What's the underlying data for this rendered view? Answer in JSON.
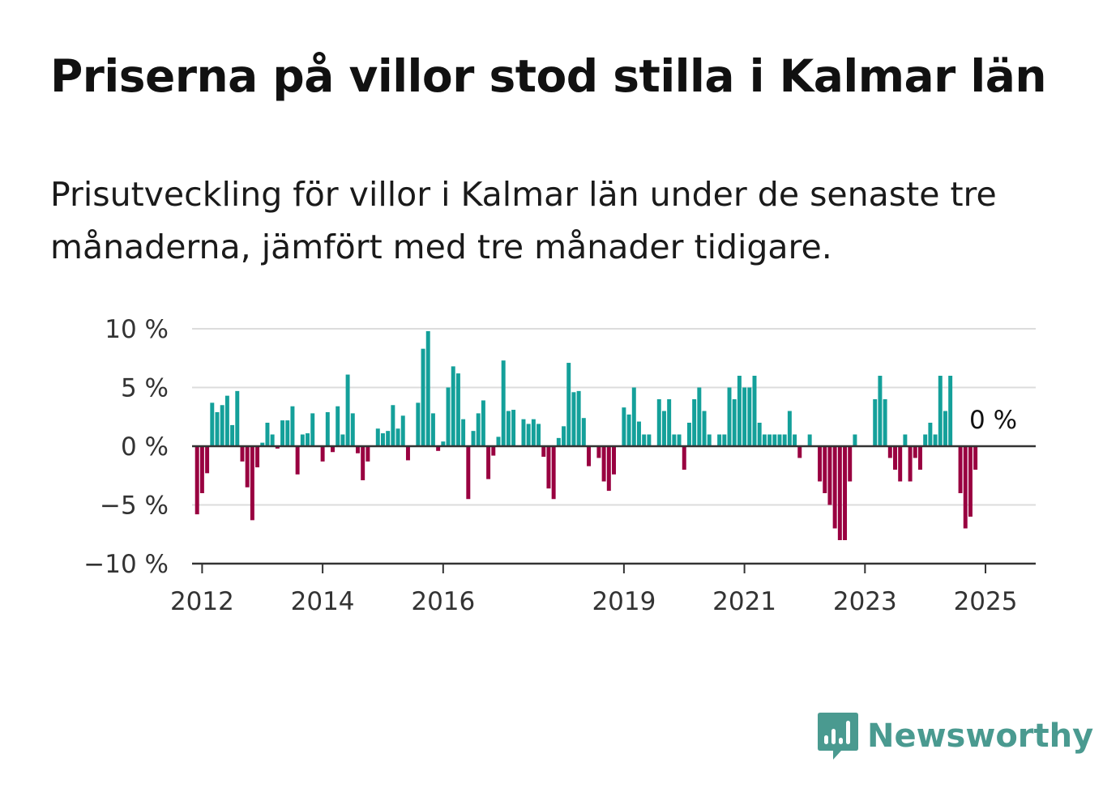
{
  "title": "Priserna på villor stod stilla i Kalmar län",
  "subtitle": "Prisutveckling för villor i Kalmar län under de senaste tre månaderna, jämfört med tre månader tidigare.",
  "brand": {
    "name": "Newsworthy",
    "icon": "newsworthy-logo-icon",
    "color": "#4a9a90"
  },
  "chart_data": {
    "type": "bar",
    "title": "",
    "xlabel": "",
    "ylabel": "",
    "ylim": [
      -10,
      10
    ],
    "yticks": [
      10,
      5,
      0,
      -5,
      -10
    ],
    "ytick_labels": [
      "10 %",
      "5 %",
      "0 %",
      "−5 %",
      "−10 %"
    ],
    "xticks": [
      "2012",
      "2014",
      "2016",
      "2019",
      "2021",
      "2023",
      "2025"
    ],
    "grid": true,
    "colors": {
      "positive": "#14a09a",
      "negative": "#990040"
    },
    "end_label": "0 %",
    "start": "2011-12",
    "end": "2025-03",
    "values": [
      -5.8,
      -4,
      -2.3,
      3.7,
      2.9,
      3.5,
      4.3,
      1.8,
      4.7,
      -1.3,
      -3.5,
      -6.3,
      -1.8,
      0.3,
      2.0,
      1.0,
      -0.2,
      2.2,
      2.2,
      3.4,
      -2.4,
      1.0,
      1.1,
      2.8,
      0,
      -1.3,
      2.9,
      -0.5,
      3.4,
      1.0,
      6.1,
      2.8,
      -0.6,
      -2.9,
      -1.3,
      0,
      1.5,
      1.1,
      1.3,
      3.5,
      1.5,
      2.6,
      -1.2,
      0,
      3.7,
      8.3,
      9.8,
      2.8,
      -0.4,
      0.4,
      5.0,
      6.8,
      6.2,
      2.3,
      -4.5,
      1.3,
      2.8,
      3.9,
      -2.8,
      -0.8,
      0.8,
      7.3,
      3.0,
      3.1,
      0,
      2.3,
      1.9,
      2.3,
      1.9,
      -0.9,
      -3.6,
      -4.5,
      0.7,
      1.7,
      7.1,
      4.6,
      4.7,
      2.4,
      -1.7,
      0,
      -1.0,
      -3.0,
      -3.8,
      -2.4,
      0,
      3.3,
      2.7,
      5.0,
      2.1,
      1.0,
      1.0,
      0,
      4.0,
      3.0,
      4.0,
      1.0,
      1.0,
      -2.0,
      2.0,
      4.0,
      5.0,
      3.0,
      1.0,
      0,
      1.0,
      1.0,
      5.0,
      4.0,
      6.0,
      5.0,
      5.0,
      6.0,
      2.0,
      1.0,
      1.0,
      1.0,
      1.0,
      1.0,
      3.0,
      1.0,
      -1.0,
      0,
      1.0,
      0,
      -3.0,
      -4.0,
      -5.0,
      -7.0,
      -8.0,
      -8.0,
      -3.0,
      1.0,
      0,
      0,
      0,
      4.0,
      6.0,
      4.0,
      -1.0,
      -2.0,
      -3.0,
      1.0,
      -3.0,
      -1.0,
      -2.0,
      1.0,
      2.0,
      1.0,
      6.0,
      3.0,
      6.0,
      0,
      -4.0,
      -7.0,
      -6.0,
      -2.0,
      0
    ]
  }
}
